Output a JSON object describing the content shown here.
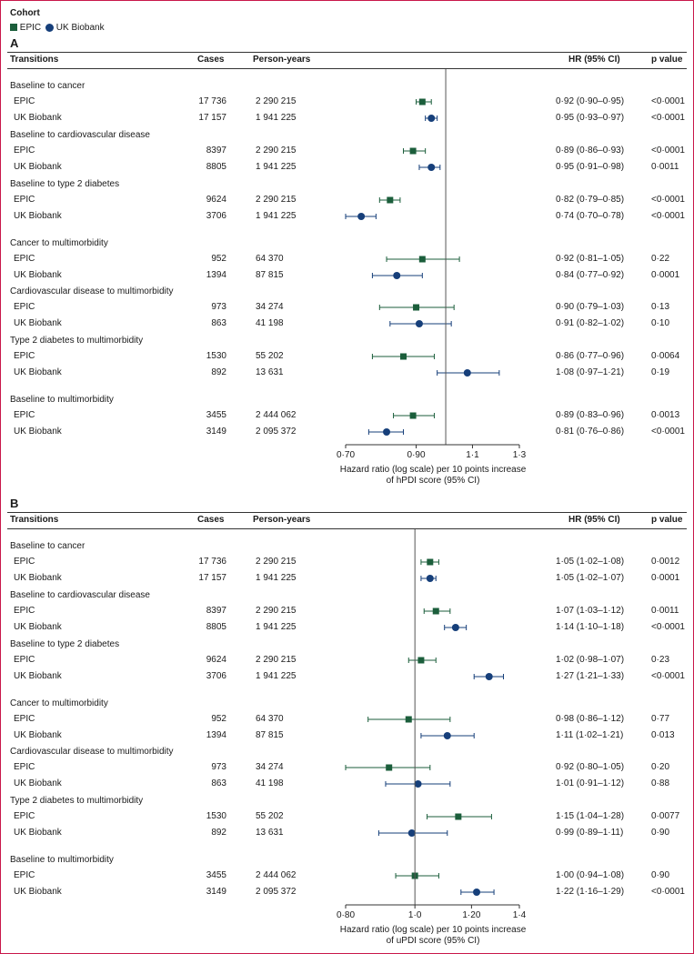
{
  "legend": {
    "title": "Cohort",
    "items": [
      {
        "label": "EPIC",
        "color": "#1b5e3b",
        "shape": "square"
      },
      {
        "label": "UK Biobank",
        "color": "#163f7a",
        "shape": "circle"
      }
    ]
  },
  "columns": {
    "transitions": "Transitions",
    "cases": "Cases",
    "person_years": "Person-years",
    "hr": "HR (95% CI)",
    "p": "p value"
  },
  "colors": {
    "epic": "#1b5e3b",
    "ukb": "#163f7a",
    "ref_line": "#555555"
  },
  "chart_data": [
    {
      "type": "forest",
      "panel": "A",
      "xlabel_line1": "Hazard ratio (log scale) per 10 points increase",
      "xlabel_line2": "of hPDI score (95% CI)",
      "xscale": "log",
      "xlim": [
        0.7,
        1.3
      ],
      "reference": 1.0,
      "ticks": [
        {
          "value": 0.7,
          "label": "0·70"
        },
        {
          "value": 0.9,
          "label": "0·90"
        },
        {
          "value": 1.1,
          "label": "1·1"
        },
        {
          "value": 1.3,
          "label": "1·3"
        }
      ],
      "groups": [
        {
          "title": "Baseline to cancer",
          "rows": [
            {
              "cohort": "EPIC",
              "cases": "17 736",
              "py": "2 290 215",
              "hr": 0.92,
              "lo": 0.9,
              "hi": 0.95,
              "hr_text": "0·92 (0·90–0·95)",
              "p": "<0·0001"
            },
            {
              "cohort": "UK Biobank",
              "cases": "17 157",
              "py": "1 941 225",
              "hr": 0.95,
              "lo": 0.93,
              "hi": 0.97,
              "hr_text": "0·95 (0·93–0·97)",
              "p": "<0·0001"
            }
          ]
        },
        {
          "title": "Baseline to cardiovascular disease",
          "rows": [
            {
              "cohort": "EPIC",
              "cases": "8397",
              "py": "2 290 215",
              "hr": 0.89,
              "lo": 0.86,
              "hi": 0.93,
              "hr_text": "0·89 (0·86–0·93)",
              "p": "<0·0001"
            },
            {
              "cohort": "UK Biobank",
              "cases": "8805",
              "py": "1 941 225",
              "hr": 0.95,
              "lo": 0.91,
              "hi": 0.98,
              "hr_text": "0·95 (0·91–0·98)",
              "p": "0·0011"
            }
          ]
        },
        {
          "title": "Baseline to type 2 diabetes",
          "rows": [
            {
              "cohort": "EPIC",
              "cases": "9624",
              "py": "2 290 215",
              "hr": 0.82,
              "lo": 0.79,
              "hi": 0.85,
              "hr_text": "0·82 (0·79–0·85)",
              "p": "<0·0001"
            },
            {
              "cohort": "UK Biobank",
              "cases": "3706",
              "py": "1 941 225",
              "hr": 0.74,
              "lo": 0.7,
              "hi": 0.78,
              "hr_text": "0·74 (0·70–0·78)",
              "p": "<0·0001"
            }
          ]
        },
        {
          "title": "Cancer to multimorbidity",
          "rows": [
            {
              "cohort": "EPIC",
              "cases": "952",
              "py": "64 370",
              "hr": 0.92,
              "lo": 0.81,
              "hi": 1.05,
              "hr_text": "0·92 (0·81–1·05)",
              "p": "0·22"
            },
            {
              "cohort": "UK Biobank",
              "cases": "1394",
              "py": "87 815",
              "hr": 0.84,
              "lo": 0.77,
              "hi": 0.92,
              "hr_text": "0·84 (0·77–0·92)",
              "p": "0·0001"
            }
          ]
        },
        {
          "title": "Cardiovascular disease to multimorbidity",
          "rows": [
            {
              "cohort": "EPIC",
              "cases": "973",
              "py": "34 274",
              "hr": 0.9,
              "lo": 0.79,
              "hi": 1.03,
              "hr_text": "0·90 (0·79–1·03)",
              "p": "0·13"
            },
            {
              "cohort": "UK Biobank",
              "cases": "863",
              "py": "41 198",
              "hr": 0.91,
              "lo": 0.82,
              "hi": 1.02,
              "hr_text": "0·91 (0·82–1·02)",
              "p": "0·10"
            }
          ]
        },
        {
          "title": "Type 2 diabetes to multimorbidity",
          "rows": [
            {
              "cohort": "EPIC",
              "cases": "1530",
              "py": "55 202",
              "hr": 0.86,
              "lo": 0.77,
              "hi": 0.96,
              "hr_text": "0·86 (0·77–0·96)",
              "p": "0·0064"
            },
            {
              "cohort": "UK Biobank",
              "cases": "892",
              "py": "13 631",
              "hr": 1.08,
              "lo": 0.97,
              "hi": 1.21,
              "hr_text": "1·08 (0·97–1·21)",
              "p": "0·19"
            }
          ]
        },
        {
          "title": "Baseline to multimorbidity",
          "rows": [
            {
              "cohort": "EPIC",
              "cases": "3455",
              "py": "2 444 062",
              "hr": 0.89,
              "lo": 0.83,
              "hi": 0.96,
              "hr_text": "0·89 (0·83–0·96)",
              "p": "0·0013"
            },
            {
              "cohort": "UK Biobank",
              "cases": "3149",
              "py": "2 095 372",
              "hr": 0.81,
              "lo": 0.76,
              "hi": 0.86,
              "hr_text": "0·81 (0·76–0·86)",
              "p": "<0·0001"
            }
          ]
        }
      ]
    },
    {
      "type": "forest",
      "panel": "B",
      "xlabel_line1": "Hazard ratio (log scale) per 10 points increase",
      "xlabel_line2": "of uPDI score (95% CI)",
      "xscale": "log",
      "xlim": [
        0.8,
        1.4
      ],
      "reference": 1.0,
      "ticks": [
        {
          "value": 0.8,
          "label": "0·80"
        },
        {
          "value": 1.0,
          "label": "1·0"
        },
        {
          "value": 1.2,
          "label": "1·20"
        },
        {
          "value": 1.4,
          "label": "1·4"
        }
      ],
      "groups": [
        {
          "title": "Baseline to cancer",
          "rows": [
            {
              "cohort": "EPIC",
              "cases": "17 736",
              "py": "2 290 215",
              "hr": 1.05,
              "lo": 1.02,
              "hi": 1.08,
              "hr_text": "1·05 (1·02–1·08)",
              "p": "0·0012"
            },
            {
              "cohort": "UK Biobank",
              "cases": "17 157",
              "py": "1 941 225",
              "hr": 1.05,
              "lo": 1.02,
              "hi": 1.07,
              "hr_text": "1·05 (1·02–1·07)",
              "p": "0·0001"
            }
          ]
        },
        {
          "title": "Baseline to cardiovascular disease",
          "rows": [
            {
              "cohort": "EPIC",
              "cases": "8397",
              "py": "2 290 215",
              "hr": 1.07,
              "lo": 1.03,
              "hi": 1.12,
              "hr_text": "1·07 (1·03–1·12)",
              "p": "0·0011"
            },
            {
              "cohort": "UK Biobank",
              "cases": "8805",
              "py": "1 941 225",
              "hr": 1.14,
              "lo": 1.1,
              "hi": 1.18,
              "hr_text": "1·14 (1·10–1·18)",
              "p": "<0·0001"
            }
          ]
        },
        {
          "title": "Baseline to type 2 diabetes",
          "rows": [
            {
              "cohort": "EPIC",
              "cases": "9624",
              "py": "2 290 215",
              "hr": 1.02,
              "lo": 0.98,
              "hi": 1.07,
              "hr_text": "1·02 (0·98–1·07)",
              "p": "0·23"
            },
            {
              "cohort": "UK Biobank",
              "cases": "3706",
              "py": "1 941 225",
              "hr": 1.27,
              "lo": 1.21,
              "hi": 1.33,
              "hr_text": "1·27 (1·21–1·33)",
              "p": "<0·0001"
            }
          ]
        },
        {
          "title": "Cancer to multimorbidity",
          "rows": [
            {
              "cohort": "EPIC",
              "cases": "952",
              "py": "64 370",
              "hr": 0.98,
              "lo": 0.86,
              "hi": 1.12,
              "hr_text": "0·98 (0·86–1·12)",
              "p": "0·77"
            },
            {
              "cohort": "UK Biobank",
              "cases": "1394",
              "py": "87 815",
              "hr": 1.11,
              "lo": 1.02,
              "hi": 1.21,
              "hr_text": "1·11 (1·02–1·21)",
              "p": "0·013"
            }
          ]
        },
        {
          "title": "Cardiovascular disease to multimorbidity",
          "rows": [
            {
              "cohort": "EPIC",
              "cases": "973",
              "py": "34 274",
              "hr": 0.92,
              "lo": 0.8,
              "hi": 1.05,
              "hr_text": "0·92 (0·80–1·05)",
              "p": "0·20"
            },
            {
              "cohort": "UK Biobank",
              "cases": "863",
              "py": "41 198",
              "hr": 1.01,
              "lo": 0.91,
              "hi": 1.12,
              "hr_text": "1·01 (0·91–1·12)",
              "p": "0·88"
            }
          ]
        },
        {
          "title": "Type 2 diabetes to multimorbidity",
          "rows": [
            {
              "cohort": "EPIC",
              "cases": "1530",
              "py": "55 202",
              "hr": 1.15,
              "lo": 1.04,
              "hi": 1.28,
              "hr_text": "1·15 (1·04–1·28)",
              "p": "0·0077"
            },
            {
              "cohort": "UK Biobank",
              "cases": "892",
              "py": "13 631",
              "hr": 0.99,
              "lo": 0.89,
              "hi": 1.11,
              "hr_text": "0·99 (0·89–1·11)",
              "p": "0·90"
            }
          ]
        },
        {
          "title": "Baseline to multimorbidity",
          "rows": [
            {
              "cohort": "EPIC",
              "cases": "3455",
              "py": "2 444 062",
              "hr": 1.0,
              "lo": 0.94,
              "hi": 1.08,
              "hr_text": "1·00 (0·94–1·08)",
              "p": "0·90"
            },
            {
              "cohort": "UK Biobank",
              "cases": "3149",
              "py": "2 095 372",
              "hr": 1.22,
              "lo": 1.16,
              "hi": 1.29,
              "hr_text": "1·22 (1·16–1·29)",
              "p": "<0·0001"
            }
          ]
        }
      ]
    }
  ]
}
